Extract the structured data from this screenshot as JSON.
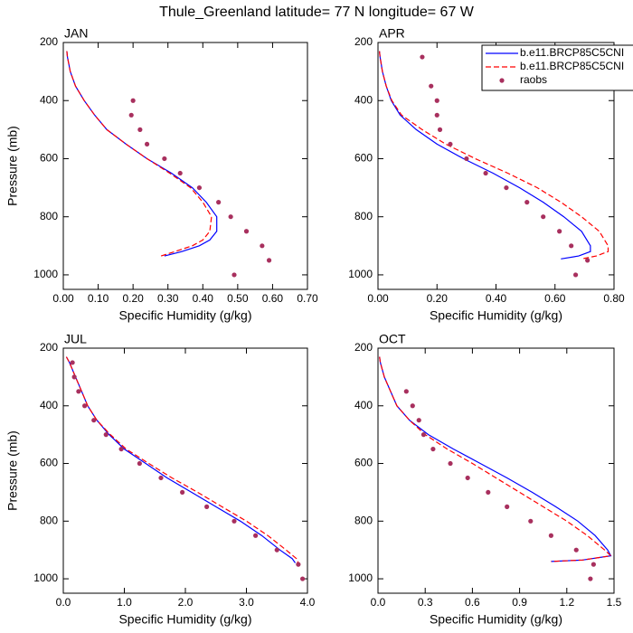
{
  "title": "Thule_Greenland  latitude= 77 N longitude= 67 W",
  "chart_data": [
    {
      "type": "line",
      "title": "JAN",
      "xlabel": "Specific Humidity (g/kg)",
      "ylabel": "Pressure (mb)",
      "xlim": [
        0,
        0.7
      ],
      "ylim": [
        200,
        1050
      ],
      "y_reversed": true,
      "xticks": [
        {
          "value": 0,
          "label": "0.00"
        },
        {
          "value": 0.1,
          "label": "0.10"
        },
        {
          "value": 0.2,
          "label": "0.20"
        },
        {
          "value": 0.3,
          "label": "0.30"
        },
        {
          "value": 0.4,
          "label": "0.40"
        },
        {
          "value": 0.5,
          "label": "0.50"
        },
        {
          "value": 0.6,
          "label": "0.60"
        },
        {
          "value": 0.7,
          "label": "0.70"
        }
      ],
      "yticks": [
        200,
        400,
        600,
        800,
        1000
      ],
      "series": [
        {
          "name": "b.e11.BRCP85C5CNI",
          "color": "#0000ff",
          "dashed": false,
          "x": [
            0.01,
            0.012,
            0.02,
            0.035,
            0.06,
            0.09,
            0.125,
            0.18,
            0.24,
            0.31,
            0.37,
            0.41,
            0.44,
            0.44,
            0.42,
            0.39,
            0.34,
            0.29
          ],
          "y": [
            230,
            250,
            300,
            350,
            400,
            450,
            500,
            550,
            600,
            650,
            700,
            750,
            800,
            850,
            880,
            900,
            920,
            935
          ]
        },
        {
          "name": "b.e11.BRCP85C5CNI",
          "color": "#ff0000",
          "dashed": true,
          "x": [
            0.01,
            0.012,
            0.02,
            0.035,
            0.06,
            0.09,
            0.125,
            0.18,
            0.24,
            0.305,
            0.365,
            0.4,
            0.425,
            0.42,
            0.4,
            0.37,
            0.32,
            0.28
          ],
          "y": [
            230,
            250,
            300,
            350,
            400,
            450,
            500,
            550,
            600,
            650,
            700,
            750,
            800,
            850,
            880,
            900,
            920,
            935
          ]
        },
        {
          "name": "raobs",
          "color": "#a8305e",
          "marker": "dot",
          "x": [
            0.2,
            0.195,
            0.22,
            0.24,
            0.29,
            0.335,
            0.39,
            0.445,
            0.48,
            0.525,
            0.57,
            0.59,
            0.49
          ],
          "y": [
            400,
            450,
            500,
            550,
            600,
            650,
            700,
            750,
            800,
            850,
            900,
            950,
            1000
          ]
        }
      ]
    },
    {
      "type": "line",
      "title": "APR",
      "xlabel": "Specific Humidity (g/kg)",
      "legend": "upper right",
      "xlim": [
        0,
        0.8
      ],
      "ylim": [
        200,
        1050
      ],
      "y_reversed": true,
      "xticks": [
        {
          "value": 0,
          "label": "0.00"
        },
        {
          "value": 0.2,
          "label": "0.20"
        },
        {
          "value": 0.4,
          "label": "0.40"
        },
        {
          "value": 0.6,
          "label": "0.60"
        },
        {
          "value": 0.8,
          "label": "0.80"
        }
      ],
      "yticks": [
        200,
        400,
        600,
        800,
        1000
      ],
      "series": [
        {
          "name": "b.e11.BRCP85C5CNI",
          "color": "#0000ff",
          "dashed": false,
          "x": [
            0.005,
            0.007,
            0.015,
            0.028,
            0.045,
            0.075,
            0.13,
            0.2,
            0.29,
            0.39,
            0.48,
            0.56,
            0.63,
            0.69,
            0.72,
            0.72,
            0.68,
            0.62
          ],
          "y": [
            230,
            250,
            300,
            350,
            400,
            450,
            500,
            550,
            600,
            650,
            700,
            750,
            800,
            850,
            900,
            920,
            935,
            945
          ]
        },
        {
          "name": "b.e11.BRCP85C5CNI",
          "color": "#ff0000",
          "dashed": true,
          "x": [
            0.005,
            0.007,
            0.015,
            0.028,
            0.047,
            0.08,
            0.15,
            0.23,
            0.33,
            0.44,
            0.54,
            0.62,
            0.69,
            0.75,
            0.78,
            0.78,
            0.74,
            0.69
          ],
          "y": [
            230,
            250,
            300,
            350,
            400,
            450,
            500,
            550,
            600,
            650,
            700,
            750,
            800,
            850,
            900,
            920,
            935,
            945
          ]
        },
        {
          "name": "raobs",
          "color": "#a8305e",
          "marker": "dot",
          "x": [
            0.15,
            0.18,
            0.2,
            0.2,
            0.21,
            0.245,
            0.3,
            0.365,
            0.435,
            0.505,
            0.56,
            0.615,
            0.655,
            0.71,
            0.67
          ],
          "y": [
            250,
            350,
            400,
            450,
            500,
            550,
            600,
            650,
            700,
            750,
            800,
            850,
            900,
            950,
            1000
          ]
        }
      ]
    },
    {
      "type": "line",
      "title": "JUL",
      "xlabel": "Specific Humidity (g/kg)",
      "ylabel": "Pressure (mb)",
      "xlim": [
        0,
        4
      ],
      "ylim": [
        200,
        1050
      ],
      "y_reversed": true,
      "xticks": [
        {
          "value": 0,
          "label": "0.0"
        },
        {
          "value": 1,
          "label": "1.0"
        },
        {
          "value": 2,
          "label": "2.0"
        },
        {
          "value": 3,
          "label": "3.0"
        },
        {
          "value": 4,
          "label": "4.0"
        }
      ],
      "yticks": [
        200,
        400,
        600,
        800,
        1000
      ],
      "series": [
        {
          "name": "b.e11.BRCP85C5CNI",
          "color": "#0000ff",
          "dashed": false,
          "x": [
            0.05,
            0.1,
            0.2,
            0.3,
            0.4,
            0.55,
            0.75,
            1.0,
            1.35,
            1.7,
            2.1,
            2.5,
            2.9,
            3.25,
            3.55,
            3.75,
            3.8
          ],
          "y": [
            230,
            250,
            300,
            350,
            400,
            450,
            500,
            550,
            600,
            650,
            700,
            750,
            800,
            850,
            900,
            930,
            945
          ]
        },
        {
          "name": "b.e11.BRCP85C5CNI",
          "color": "#ff0000",
          "dashed": true,
          "x": [
            0.05,
            0.1,
            0.2,
            0.3,
            0.4,
            0.55,
            0.77,
            1.03,
            1.4,
            1.78,
            2.2,
            2.6,
            3.0,
            3.35,
            3.65,
            3.82,
            3.85
          ],
          "y": [
            230,
            250,
            300,
            350,
            400,
            450,
            500,
            550,
            600,
            650,
            700,
            750,
            800,
            850,
            900,
            930,
            945
          ]
        },
        {
          "name": "raobs",
          "color": "#a8305e",
          "marker": "dot",
          "x": [
            0.15,
            0.18,
            0.25,
            0.35,
            0.5,
            0.7,
            0.95,
            1.25,
            1.6,
            1.95,
            2.35,
            2.8,
            3.15,
            3.5,
            3.85,
            3.92
          ],
          "y": [
            250,
            300,
            350,
            400,
            450,
            500,
            550,
            600,
            650,
            700,
            750,
            800,
            850,
            900,
            950,
            1000
          ]
        }
      ]
    },
    {
      "type": "line",
      "title": "OCT",
      "xlabel": "Specific Humidity (g/kg)",
      "xlim": [
        0,
        1.5
      ],
      "ylim": [
        200,
        1050
      ],
      "y_reversed": true,
      "xticks": [
        {
          "value": 0,
          "label": "0.0"
        },
        0.3,
        0.6,
        0.9,
        1.2,
        1.5
      ],
      "yticks": [
        200,
        400,
        600,
        800,
        1000
      ],
      "series": [
        {
          "name": "b.e11.BRCP85C5CNI",
          "color": "#0000ff",
          "dashed": false,
          "x": [
            0.01,
            0.015,
            0.04,
            0.08,
            0.12,
            0.2,
            0.32,
            0.48,
            0.65,
            0.82,
            0.98,
            1.13,
            1.27,
            1.38,
            1.46,
            1.48,
            1.3,
            1.1
          ],
          "y": [
            230,
            250,
            300,
            350,
            400,
            450,
            500,
            550,
            600,
            650,
            700,
            750,
            800,
            850,
            900,
            920,
            935,
            940
          ]
        },
        {
          "name": "b.e11.BRCP85C5CNI",
          "color": "#ff0000",
          "dashed": true,
          "x": [
            0.01,
            0.015,
            0.04,
            0.08,
            0.12,
            0.2,
            0.3,
            0.44,
            0.6,
            0.75,
            0.9,
            1.05,
            1.2,
            1.33,
            1.44,
            1.48,
            1.3,
            1.1
          ],
          "y": [
            230,
            250,
            300,
            350,
            400,
            450,
            500,
            550,
            600,
            650,
            700,
            750,
            800,
            850,
            900,
            920,
            935,
            940
          ]
        },
        {
          "name": "raobs",
          "color": "#a8305e",
          "marker": "dot",
          "x": [
            0.18,
            0.22,
            0.26,
            0.29,
            0.35,
            0.46,
            0.57,
            0.7,
            0.82,
            0.97,
            1.1,
            1.26,
            1.37,
            1.35
          ],
          "y": [
            350,
            400,
            450,
            500,
            550,
            600,
            650,
            700,
            750,
            800,
            850,
            900,
            950,
            1000
          ]
        }
      ]
    }
  ]
}
